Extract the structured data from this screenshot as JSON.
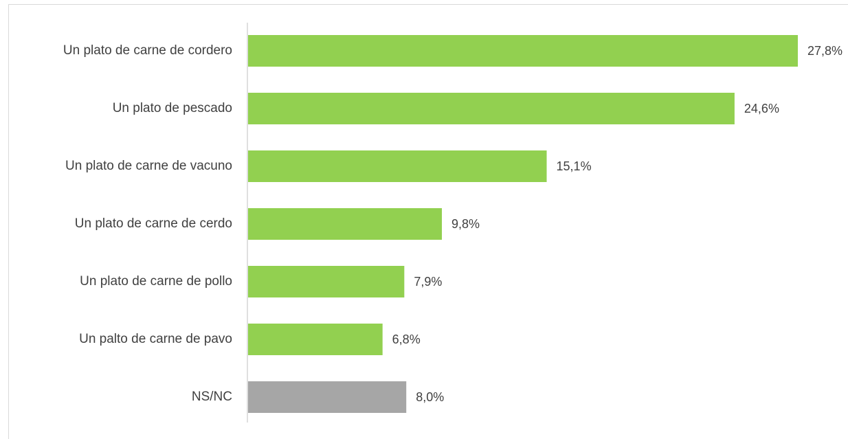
{
  "chart_data": {
    "type": "bar",
    "orientation": "horizontal",
    "categories": [
      "Un plato de carne de cordero",
      "Un plato de pescado",
      "Un plato de carne de vacuno",
      "Un plato de carne de cerdo",
      "Un plato de carne de pollo",
      "Un palto de carne de pavo",
      "NS/NC"
    ],
    "values": [
      27.8,
      24.6,
      15.1,
      9.8,
      7.9,
      6.8,
      8.0
    ],
    "value_labels": [
      "27,8%",
      "24,6%",
      "15,1%",
      "9,8%",
      "7,9%",
      "6,8%",
      "8,0%"
    ],
    "bar_colors": [
      "#92d050",
      "#92d050",
      "#92d050",
      "#92d050",
      "#92d050",
      "#92d050",
      "#a6a6a6"
    ],
    "title": "",
    "xlabel": "",
    "ylabel": "",
    "xlim": [
      0,
      27.8
    ],
    "grid": false,
    "legend": "none"
  },
  "colors": {
    "accent_green": "#92d050",
    "neutral_gray": "#a6a6a6",
    "text": "#404040",
    "axis": "#bfbfbf"
  }
}
